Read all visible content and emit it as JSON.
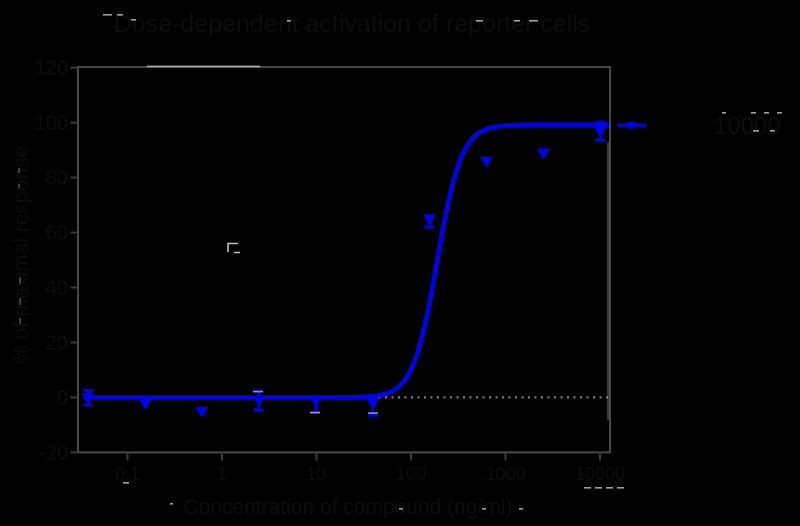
{
  "chart_data": {
    "type": "line",
    "title": "Dose-dependent activation of reporter cells",
    "xlabel": "Concentration of compound (ng/ml)",
    "ylabel": "% of maximal response",
    "x_scale": "log10",
    "xlim": [
      0.03,
      12000
    ],
    "ylim": [
      -20,
      120
    ],
    "x_ticks": [
      "0.1",
      "1",
      "10",
      "100",
      "1000",
      "10000"
    ],
    "y_ticks": [
      "120",
      "100",
      "80",
      "60",
      "40",
      "20",
      "0",
      "-20"
    ],
    "grid": false,
    "series": [
      {
        "name": "10000",
        "color": "#0000ee",
        "marker": "triangle-down",
        "line": "sigmoid-fit",
        "x": [
          0.038,
          0.153,
          0.61,
          2.44,
          9.77,
          39.1,
          156,
          625,
          2500,
          10000
        ],
        "y": [
          0,
          -2,
          -5,
          -1,
          -1,
          -2,
          65,
          86,
          89,
          97
        ],
        "y_err_plus": [
          2.7,
          0,
          0,
          3.5,
          0,
          0,
          0,
          0,
          0,
          3.3
        ],
        "y_err_minus": [
          2.7,
          0,
          0,
          3.5,
          4.5,
          4.5,
          3,
          0,
          0,
          3.3
        ]
      }
    ],
    "fit_curve": {
      "model": "4PL",
      "bottom": 0,
      "top": 99.3,
      "ec50_ng_ml": 188,
      "hill_slope": 3.4
    },
    "baseline": {
      "value": 0,
      "style": "dotted"
    },
    "legend": {
      "label": "10000",
      "position": "right-of-plot",
      "key": "line-with-marker"
    }
  },
  "colors": {
    "background": "#000000",
    "curve_blue": "#0000ee",
    "frame_gray": "#484848",
    "baseline_dots": "#8a8a8a",
    "invisible_text": "#0d0d0d",
    "artifact_white": "#c8c8c8"
  }
}
